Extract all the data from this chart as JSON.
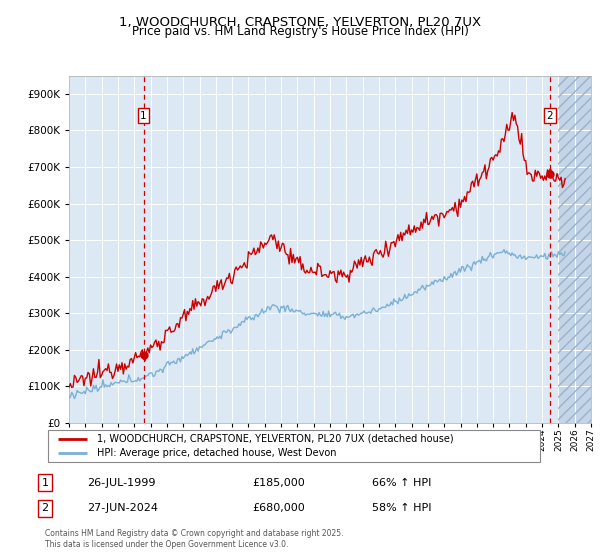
{
  "title": "1, WOODCHURCH, CRAPSTONE, YELVERTON, PL20 7UX",
  "subtitle": "Price paid vs. HM Land Registry's House Price Index (HPI)",
  "ylim": [
    0,
    950000
  ],
  "yticks": [
    0,
    100000,
    200000,
    300000,
    400000,
    500000,
    600000,
    700000,
    800000,
    900000
  ],
  "ytick_labels": [
    "£0",
    "£100K",
    "£200K",
    "£300K",
    "£400K",
    "£500K",
    "£600K",
    "£700K",
    "£800K",
    "£900K"
  ],
  "bg_color": "#dce9f5",
  "grid_color": "#ffffff",
  "red_line_color": "#cc0000",
  "blue_line_color": "#7bafd4",
  "vline_color": "#cc0000",
  "marker1_date": 1999.57,
  "marker1_price": 185000,
  "marker2_date": 2024.49,
  "marker2_price": 680000,
  "legend_label1": "1, WOODCHURCH, CRAPSTONE, YELVERTON, PL20 7UX (detached house)",
  "legend_label2": "HPI: Average price, detached house, West Devon",
  "table_row1": [
    "1",
    "26-JUL-1999",
    "£185,000",
    "66% ↑ HPI"
  ],
  "table_row2": [
    "2",
    "27-JUN-2024",
    "£680,000",
    "58% ↑ HPI"
  ],
  "footer": "Contains HM Land Registry data © Crown copyright and database right 2025.\nThis data is licensed under the Open Government Licence v3.0.",
  "xmin": 1995.0,
  "xmax": 2027.0,
  "hatch_xstart": 2025.0
}
